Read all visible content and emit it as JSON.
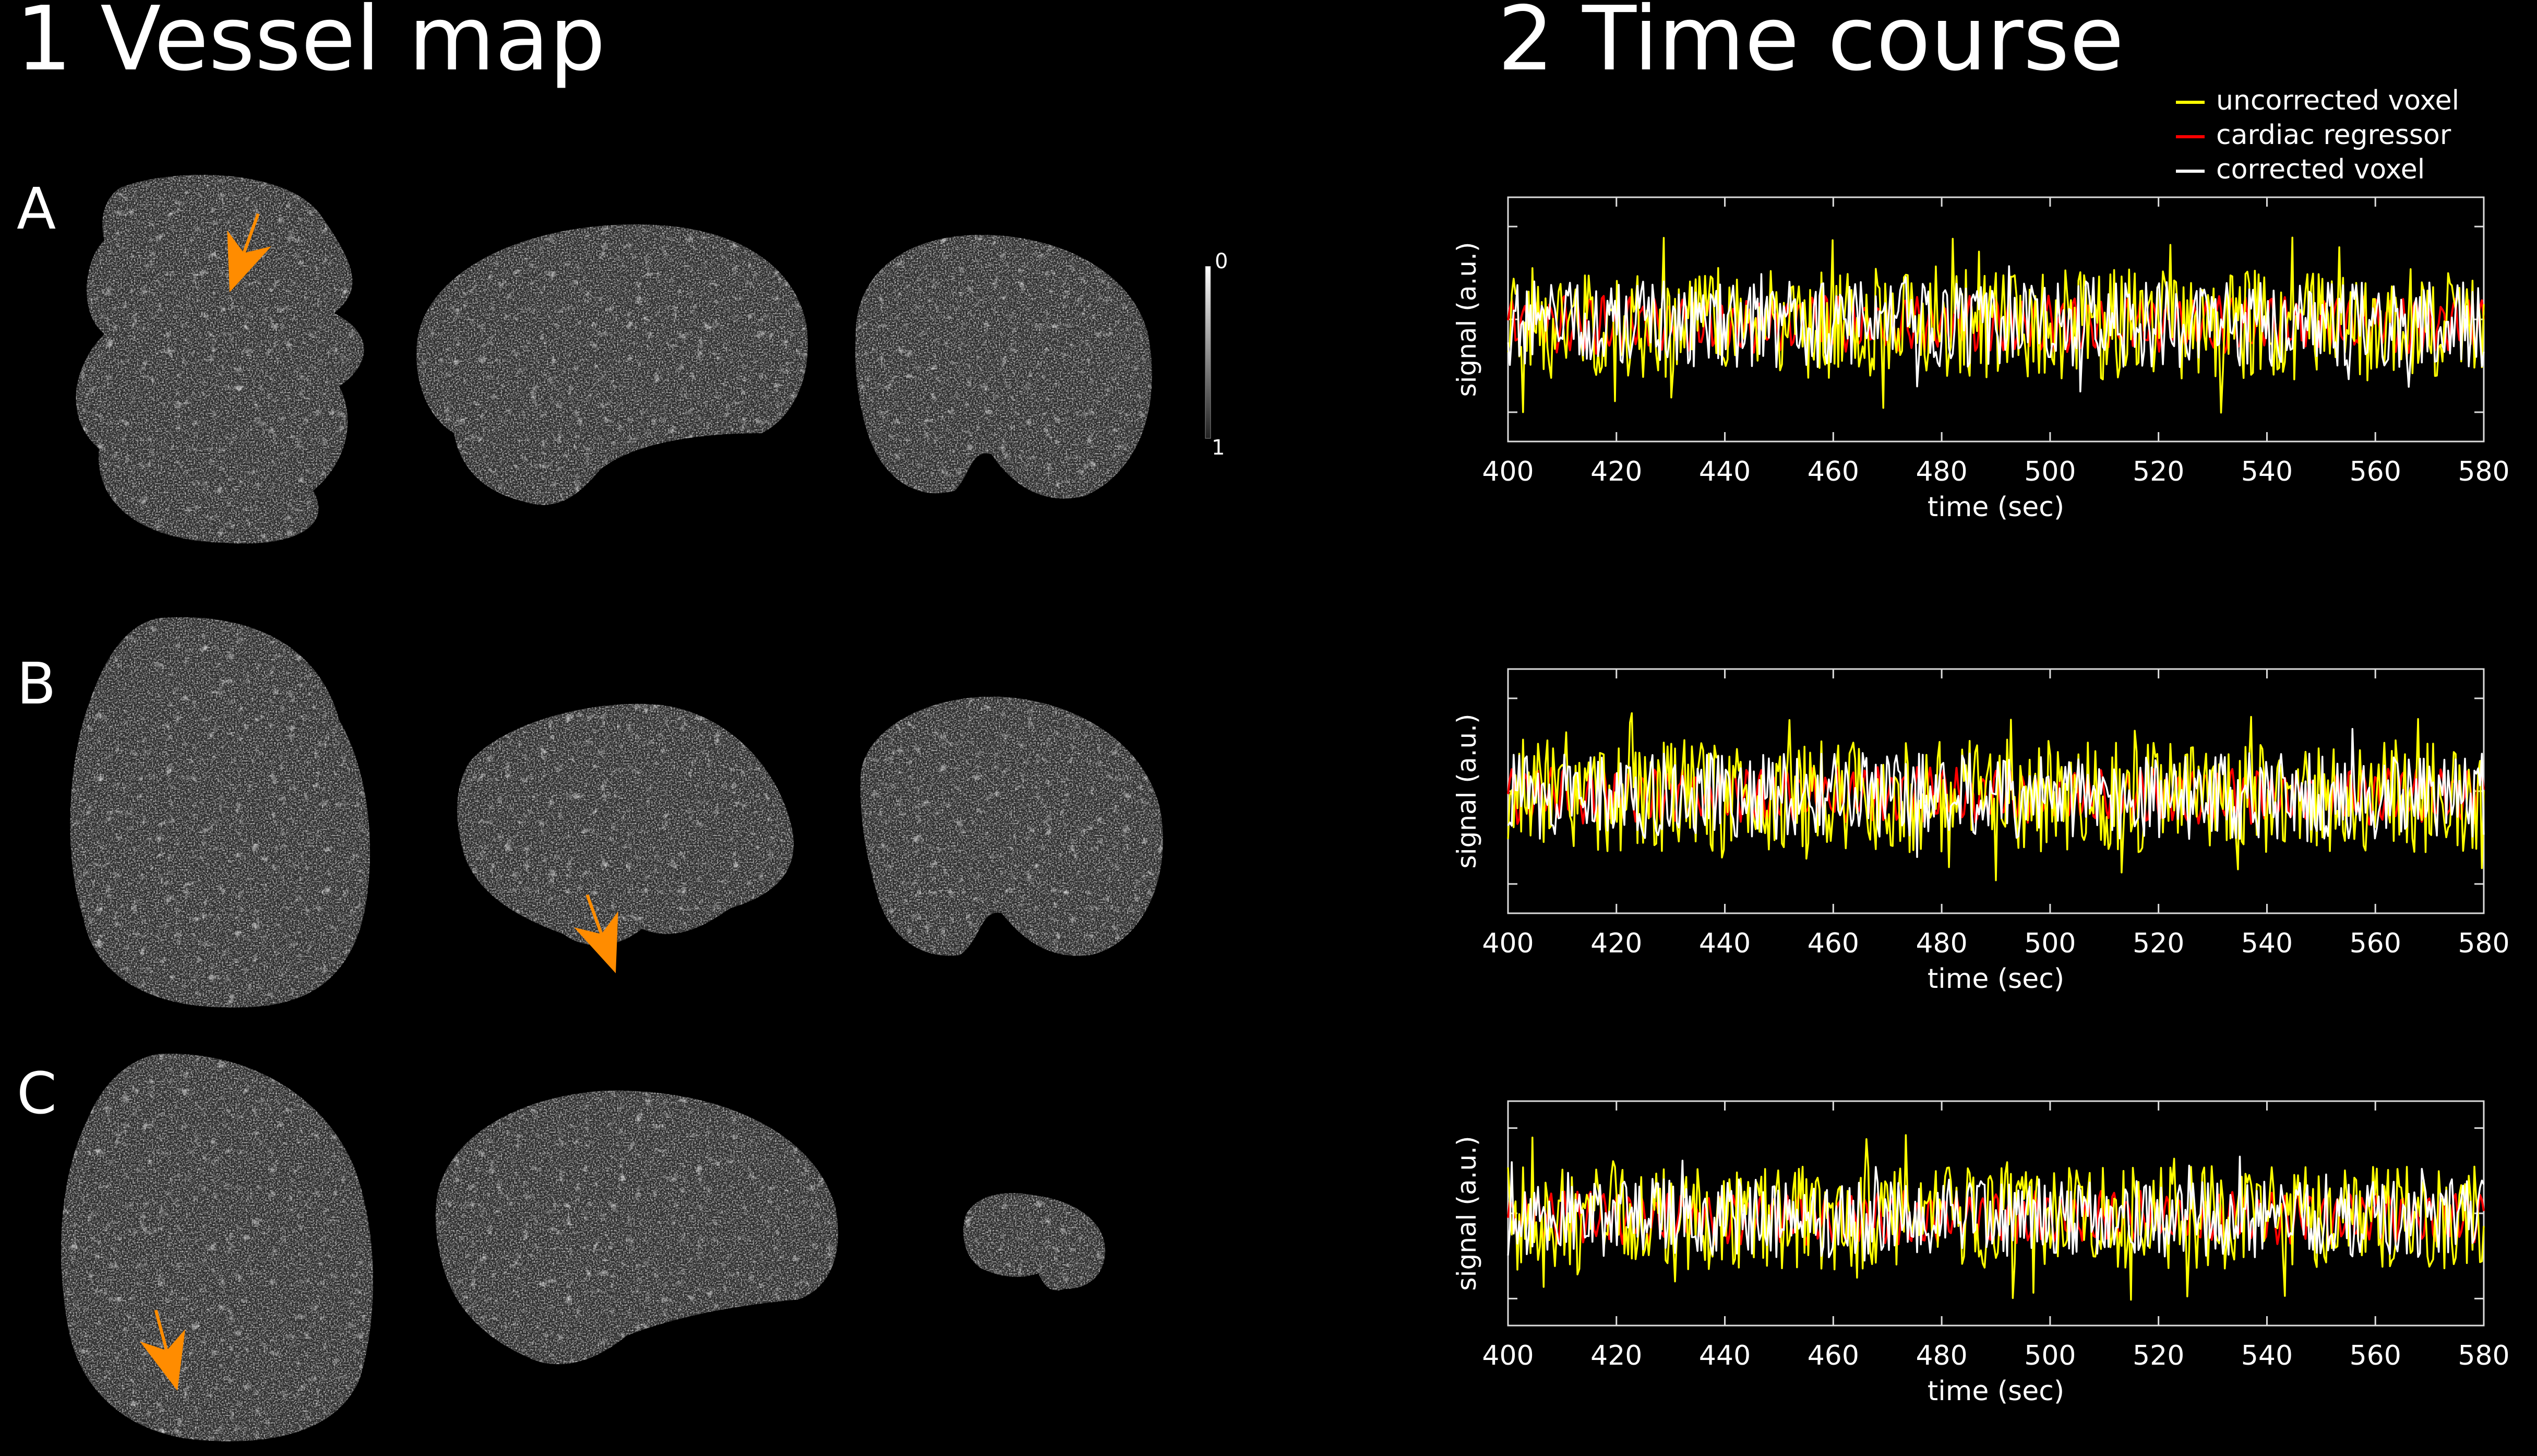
{
  "panel1": {
    "title": "1 Vessel map",
    "rows": [
      "A",
      "B",
      "C"
    ],
    "colorbar_ticks": [
      "0",
      "1"
    ]
  },
  "panel2": {
    "title": "2 Time course"
  },
  "legend": [
    {
      "label": "uncorrected voxel",
      "color": "#ffff00"
    },
    {
      "label": "cardiac regressor",
      "color": "#ff0000"
    },
    {
      "label": "corrected voxel",
      "color": "#ffffff"
    }
  ],
  "arrow_color": "#ff8c00",
  "chart_data": [
    {
      "type": "line",
      "xlabel": "time (sec)",
      "ylabel": "signal (a.u.)",
      "xlim": [
        400,
        580
      ],
      "xticks": [
        "400",
        "420",
        "440",
        "460",
        "480",
        "500",
        "520",
        "540",
        "560",
        "580"
      ],
      "series": [
        {
          "name": "uncorrected voxel",
          "color": "#ffff00"
        },
        {
          "name": "cardiac regressor",
          "color": "#ff0000"
        },
        {
          "name": "corrected voxel",
          "color": "#ffffff"
        }
      ]
    },
    {
      "type": "line",
      "xlabel": "time (sec)",
      "ylabel": "signal (a.u.)",
      "xlim": [
        400,
        580
      ],
      "xticks": [
        "400",
        "420",
        "440",
        "460",
        "480",
        "500",
        "520",
        "540",
        "560",
        "580"
      ],
      "series": [
        {
          "name": "uncorrected voxel",
          "color": "#ffff00"
        },
        {
          "name": "cardiac regressor",
          "color": "#ff0000"
        },
        {
          "name": "corrected voxel",
          "color": "#ffffff"
        }
      ]
    },
    {
      "type": "line",
      "xlabel": "time (sec)",
      "ylabel": "signal (a.u.)",
      "xlim": [
        400,
        580
      ],
      "xticks": [
        "400",
        "420",
        "440",
        "460",
        "480",
        "500",
        "520",
        "540",
        "560",
        "580"
      ],
      "series": [
        {
          "name": "uncorrected voxel",
          "color": "#ffff00"
        },
        {
          "name": "cardiac regressor",
          "color": "#ff0000"
        },
        {
          "name": "corrected voxel",
          "color": "#ffffff"
        }
      ]
    }
  ]
}
